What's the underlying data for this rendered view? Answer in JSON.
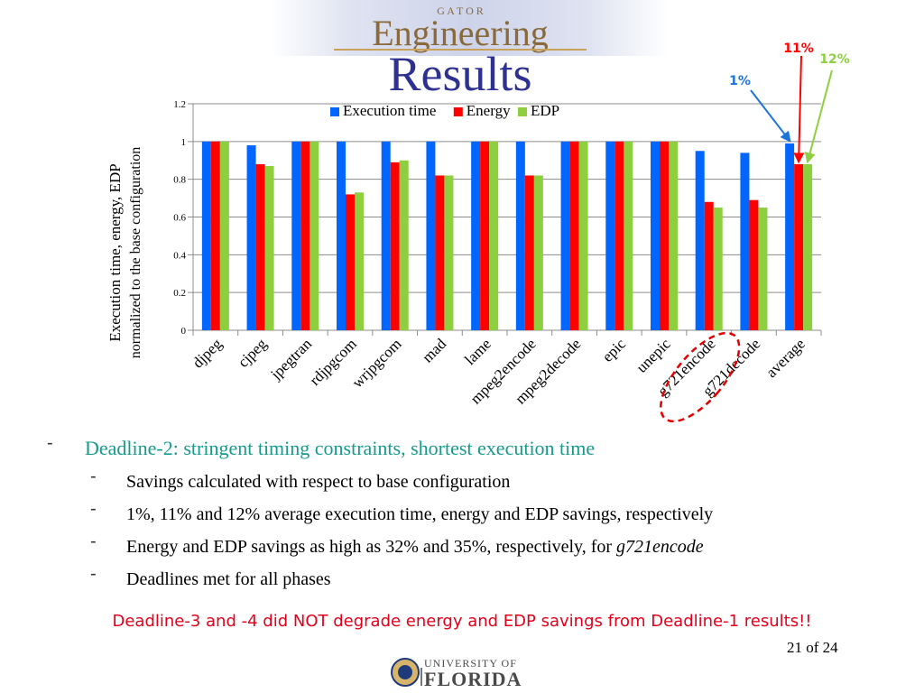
{
  "header": {
    "logo_small": "G A T O R",
    "logo_big": "Engineering",
    "title": "Results"
  },
  "colors": {
    "title": "#2e3192",
    "exec": "#0066ff",
    "energy": "#ff0000",
    "edp": "#8dcf3f",
    "teal": "#159a8c",
    "note_red": "#e3001b",
    "callout_blue": "#1e73d8"
  },
  "chart_data": {
    "type": "bar",
    "ylabel_line1": "Execution time, energy, EDP",
    "ylabel_line2": "normalized to the base configuration",
    "ylim": [
      0,
      1.2
    ],
    "yticks": [
      "0",
      "0.2",
      "0.4",
      "0.6",
      "0.8",
      "1",
      "1.2"
    ],
    "legend_position": "top",
    "grid": true,
    "categories": [
      "djpeg",
      "cjpeg",
      "jpegtran",
      "rdjpgcom",
      "wrjpgcom",
      "mad",
      "lame",
      "mpeg2encode",
      "mpeg2decode",
      "epic",
      "unepic",
      "g721encode",
      "g721decode",
      "average"
    ],
    "series": [
      {
        "name": "Execution time",
        "color": "#0066ff",
        "values": [
          1.0,
          0.98,
          1.0,
          1.0,
          1.0,
          1.0,
          1.0,
          1.0,
          1.0,
          1.0,
          1.0,
          0.95,
          0.94,
          0.99
        ]
      },
      {
        "name": "Energy",
        "color": "#ff0000",
        "values": [
          1.0,
          0.88,
          1.0,
          0.72,
          0.89,
          0.82,
          1.0,
          0.82,
          1.0,
          1.0,
          1.0,
          0.68,
          0.69,
          0.88
        ]
      },
      {
        "name": "EDP",
        "color": "#8dcf3f",
        "values": [
          1.0,
          0.87,
          1.0,
          0.73,
          0.9,
          0.82,
          1.0,
          0.82,
          1.0,
          1.0,
          1.0,
          0.65,
          0.65,
          0.88
        ]
      }
    ],
    "annotations": [
      {
        "text": "1%",
        "color": "#1e73d8",
        "series": 0,
        "category": "average"
      },
      {
        "text": "11%",
        "color": "#ff0000",
        "series": 1,
        "category": "average"
      },
      {
        "text": "12%",
        "color": "#8dcf3f",
        "series": 2,
        "category": "average"
      }
    ],
    "highlight": "g721encode"
  },
  "bullets": {
    "main": "Deadline-2: stringent timing constraints, shortest execution time",
    "sub1": "Savings calculated with respect to base configuration",
    "sub2": "1%, 11% and 12% average execution time, energy and EDP savings, respectively",
    "sub3_prefix": "Energy and EDP savings as high as 32% and 35%, respectively, for ",
    "sub3_italic": "g721encode",
    "sub4": "Deadlines met for all phases"
  },
  "note": "Deadline-3 and -4 did NOT degrade energy and EDP savings from Deadline-1 results!!",
  "page_number": "21 of 24",
  "footer_logo": {
    "line1": "UNIVERSITY OF",
    "line2": "FLORIDA"
  }
}
